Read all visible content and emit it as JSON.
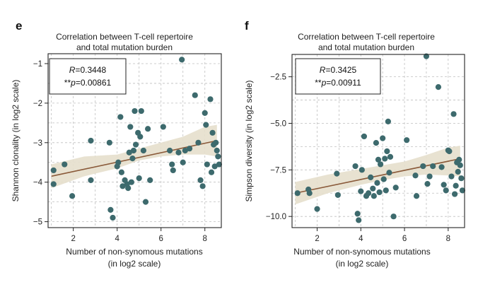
{
  "chart_data": [
    {
      "panel": "e",
      "type": "scatter",
      "title": [
        "Correlation between T-cell repertoire",
        "and total mutation burden"
      ],
      "xlabel": [
        "Number of non-synomous mutations",
        "(in log2 scale)"
      ],
      "ylabel": "Shannon clonality (in log2 scale)",
      "xlim": [
        0.85,
        8.75
      ],
      "ylim": [
        -5.15,
        -0.75
      ],
      "xticks": [
        2,
        4,
        6,
        8
      ],
      "xtick_labels": [
        "2",
        "4",
        "6",
        "8"
      ],
      "yticks": [
        -5,
        -4,
        -3,
        -2,
        -1
      ],
      "ytick_labels": [
        "−5",
        "−4",
        "−3",
        "−2",
        "−1"
      ],
      "stats": {
        "r_label": "R",
        "r_value": "=0.3448",
        "p_prefix": "**",
        "p_label": "p",
        "p_value": "=0.00861"
      },
      "fit": {
        "x0": 1.0,
        "y0": -3.85,
        "x1": 8.55,
        "y1": -2.95
      },
      "ci_upper": [
        [
          1.0,
          -3.55
        ],
        [
          2.5,
          -3.35
        ],
        [
          4.0,
          -3.3
        ],
        [
          5.0,
          -3.15
        ],
        [
          6.0,
          -3.0
        ],
        [
          7.0,
          -2.85
        ],
        [
          8.0,
          -2.6
        ],
        [
          8.55,
          -2.55
        ]
      ],
      "ci_lower": [
        [
          1.0,
          -4.15
        ],
        [
          2.5,
          -3.85
        ],
        [
          4.0,
          -3.65
        ],
        [
          5.0,
          -3.45
        ],
        [
          6.0,
          -3.35
        ],
        [
          7.0,
          -3.3
        ],
        [
          8.0,
          -3.3
        ],
        [
          8.55,
          -3.35
        ]
      ],
      "points": [
        [
          1.1,
          -3.7
        ],
        [
          1.1,
          -4.05
        ],
        [
          1.6,
          -3.55
        ],
        [
          1.95,
          -4.35
        ],
        [
          2.8,
          -2.95
        ],
        [
          2.8,
          -3.95
        ],
        [
          3.65,
          -3.0
        ],
        [
          3.7,
          -4.7
        ],
        [
          3.8,
          -4.9
        ],
        [
          4.0,
          -3.6
        ],
        [
          4.05,
          -3.5
        ],
        [
          4.15,
          -2.35
        ],
        [
          4.2,
          -3.75
        ],
        [
          4.25,
          -4.1
        ],
        [
          4.35,
          -3.95
        ],
        [
          4.45,
          -4.05
        ],
        [
          4.5,
          -4.15
        ],
        [
          4.55,
          -3.25
        ],
        [
          4.6,
          -2.6
        ],
        [
          4.65,
          -4.0
        ],
        [
          4.7,
          -3.4
        ],
        [
          4.75,
          -3.2
        ],
        [
          4.8,
          -2.2
        ],
        [
          4.85,
          -3.05
        ],
        [
          4.95,
          -2.75
        ],
        [
          5.0,
          -3.9
        ],
        [
          5.05,
          -2.85
        ],
        [
          5.1,
          -2.2
        ],
        [
          5.2,
          -3.2
        ],
        [
          5.3,
          -4.5
        ],
        [
          5.4,
          -2.65
        ],
        [
          5.5,
          -3.95
        ],
        [
          6.1,
          -2.6
        ],
        [
          6.4,
          -3.2
        ],
        [
          6.5,
          -3.55
        ],
        [
          6.55,
          -3.7
        ],
        [
          6.8,
          -3.25
        ],
        [
          6.95,
          -0.9
        ],
        [
          7.0,
          -3.5
        ],
        [
          7.1,
          -3.2
        ],
        [
          7.3,
          -3.15
        ],
        [
          7.55,
          -1.8
        ],
        [
          7.7,
          -3.0
        ],
        [
          7.8,
          -3.95
        ],
        [
          7.9,
          -4.1
        ],
        [
          8.0,
          -2.25
        ],
        [
          8.05,
          -2.55
        ],
        [
          8.1,
          -3.55
        ],
        [
          8.25,
          -1.9
        ],
        [
          8.3,
          -3.75
        ],
        [
          8.35,
          -2.75
        ],
        [
          8.4,
          -3.05
        ],
        [
          8.45,
          -3.6
        ],
        [
          8.5,
          -3.0
        ],
        [
          8.55,
          -3.2
        ],
        [
          8.6,
          -3.35
        ],
        [
          8.65,
          -3.55
        ]
      ]
    },
    {
      "panel": "f",
      "type": "scatter",
      "title": [
        "Correlation between T-cell repertoire",
        "and total mutation burden"
      ],
      "xlabel": [
        "Number of non-synomous mutations",
        "(in log2 scale)"
      ],
      "ylabel": "Simpson diversity (in log2 scale)",
      "xlim": [
        0.85,
        8.75
      ],
      "ylim": [
        -10.6,
        -1.3
      ],
      "xticks": [
        2,
        4,
        6,
        8
      ],
      "xtick_labels": [
        "2",
        "4",
        "6",
        "8"
      ],
      "yticks": [
        -10.0,
        -7.5,
        -5.0,
        -2.5
      ],
      "ytick_labels": [
        "−10.0",
        "−7.5",
        "−5.0",
        "−2.5"
      ],
      "stats": {
        "r_label": "R",
        "r_value": "=0.3425",
        "p_prefix": "**",
        "p_label": "p",
        "p_value": "=0.00911"
      },
      "fit": {
        "x0": 1.0,
        "y0": -8.75,
        "x1": 8.55,
        "y1": -6.9
      },
      "ci_upper": [
        [
          1.0,
          -8.15
        ],
        [
          2.5,
          -7.75
        ],
        [
          4.0,
          -7.45
        ],
        [
          5.0,
          -7.25
        ],
        [
          6.0,
          -7.05
        ],
        [
          7.0,
          -6.7
        ],
        [
          8.0,
          -6.3
        ],
        [
          8.55,
          -6.2
        ]
      ],
      "ci_lower": [
        [
          1.0,
          -9.35
        ],
        [
          2.5,
          -8.75
        ],
        [
          4.0,
          -8.3
        ],
        [
          5.0,
          -8.05
        ],
        [
          6.0,
          -7.85
        ],
        [
          7.0,
          -7.75
        ],
        [
          8.0,
          -7.8
        ],
        [
          8.55,
          -7.85
        ]
      ],
      "points": [
        [
          1.1,
          -8.75
        ],
        [
          1.6,
          -8.55
        ],
        [
          1.65,
          -8.75
        ],
        [
          2.0,
          -9.6
        ],
        [
          2.9,
          -7.7
        ],
        [
          2.95,
          -8.85
        ],
        [
          3.75,
          -7.3
        ],
        [
          3.85,
          -9.85
        ],
        [
          3.9,
          -10.2
        ],
        [
          4.0,
          -8.65
        ],
        [
          4.05,
          -7.5
        ],
        [
          4.15,
          -5.7
        ],
        [
          4.25,
          -8.9
        ],
        [
          4.35,
          -8.75
        ],
        [
          4.45,
          -7.9
        ],
        [
          4.55,
          -8.5
        ],
        [
          4.6,
          -8.9
        ],
        [
          4.7,
          -6.05
        ],
        [
          4.75,
          -8.2
        ],
        [
          4.8,
          -6.95
        ],
        [
          4.85,
          -8.7
        ],
        [
          4.9,
          -7.2
        ],
        [
          5.0,
          -5.8
        ],
        [
          5.05,
          -8.0
        ],
        [
          5.1,
          -6.9
        ],
        [
          5.15,
          -8.6
        ],
        [
          5.2,
          -6.5
        ],
        [
          5.25,
          -4.9
        ],
        [
          5.3,
          -7.65
        ],
        [
          5.35,
          -6.8
        ],
        [
          5.5,
          -10.0
        ],
        [
          5.6,
          -8.45
        ],
        [
          6.1,
          -5.9
        ],
        [
          6.5,
          -7.8
        ],
        [
          6.55,
          -8.9
        ],
        [
          6.85,
          -7.3
        ],
        [
          7.0,
          -1.4
        ],
        [
          7.05,
          -8.25
        ],
        [
          7.15,
          -7.85
        ],
        [
          7.3,
          -7.3
        ],
        [
          7.55,
          -3.05
        ],
        [
          7.7,
          -7.35
        ],
        [
          7.8,
          -8.3
        ],
        [
          7.9,
          -8.6
        ],
        [
          8.0,
          -6.45
        ],
        [
          8.05,
          -6.5
        ],
        [
          8.15,
          -7.85
        ],
        [
          8.25,
          -4.5
        ],
        [
          8.3,
          -8.8
        ],
        [
          8.35,
          -8.35
        ],
        [
          8.4,
          -7.1
        ],
        [
          8.45,
          -7.6
        ],
        [
          8.5,
          -6.95
        ],
        [
          8.55,
          -7.25
        ],
        [
          8.6,
          -7.95
        ],
        [
          8.65,
          -8.6
        ]
      ]
    }
  ],
  "colors": {
    "point": "#3d6a6d",
    "fit_line": "#8a5a3a",
    "ci_band": "#e6dfcc",
    "grid": "#bfbfbf"
  }
}
